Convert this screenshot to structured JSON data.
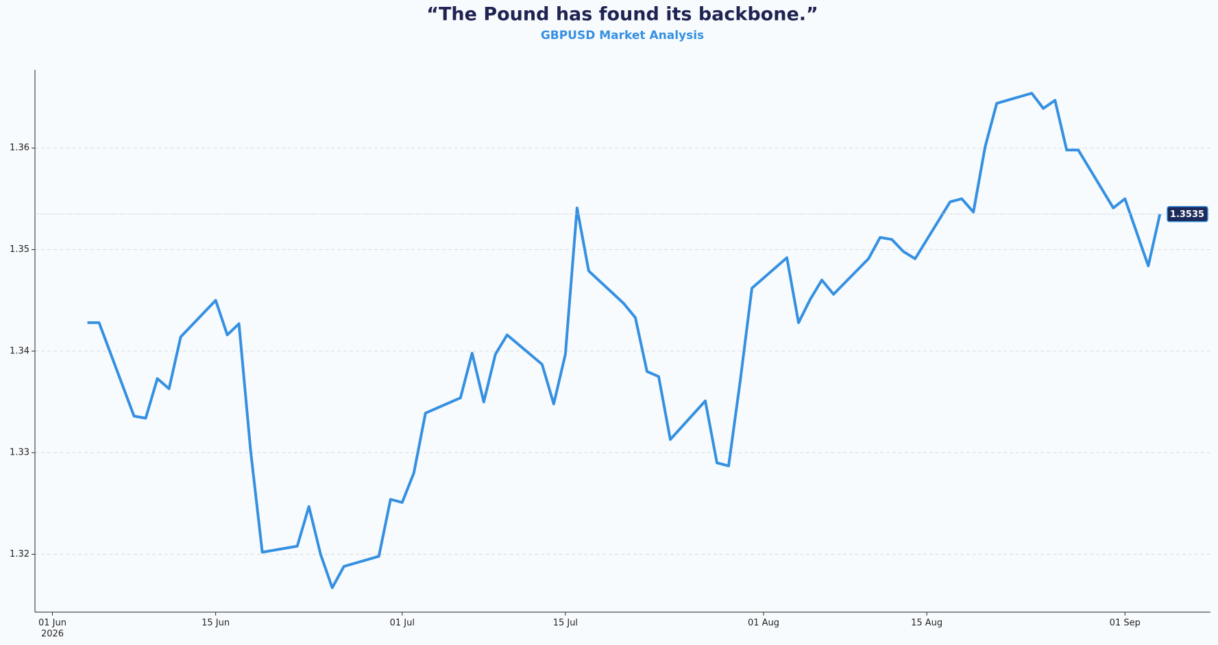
{
  "chart_data": {
    "type": "line",
    "title": "“The Pound has found its backbone.”",
    "subtitle": "GBPUSD Market Analysis",
    "series": [
      {
        "name": "GBPUSD",
        "color": "#3590e2",
        "x": [
          "2026-06-04",
          "2026-06-05",
          "2026-06-08",
          "2026-06-09",
          "2026-06-10",
          "2026-06-11",
          "2026-06-12",
          "2026-06-15",
          "2026-06-16",
          "2026-06-17",
          "2026-06-18",
          "2026-06-19",
          "2026-06-22",
          "2026-06-23",
          "2026-06-24",
          "2026-06-25",
          "2026-06-26",
          "2026-06-29",
          "2026-06-30",
          "2026-07-01",
          "2026-07-02",
          "2026-07-03",
          "2026-07-06",
          "2026-07-07",
          "2026-07-08",
          "2026-07-09",
          "2026-07-10",
          "2026-07-13",
          "2026-07-14",
          "2026-07-15",
          "2026-07-16",
          "2026-07-17",
          "2026-07-20",
          "2026-07-21",
          "2026-07-22",
          "2026-07-23",
          "2026-07-24",
          "2026-07-27",
          "2026-07-28",
          "2026-07-29",
          "2026-07-30",
          "2026-07-31",
          "2026-08-03",
          "2026-08-04",
          "2026-08-05",
          "2026-08-06",
          "2026-08-07",
          "2026-08-10",
          "2026-08-11",
          "2026-08-12",
          "2026-08-13",
          "2026-08-14",
          "2026-08-17",
          "2026-08-18",
          "2026-08-19",
          "2026-08-20",
          "2026-08-21",
          "2026-08-24",
          "2026-08-25",
          "2026-08-26",
          "2026-08-27",
          "2026-08-28",
          "2026-08-31",
          "2026-09-01",
          "2026-09-02",
          "2026-09-03",
          "2026-09-04"
        ],
        "values": [
          1.3428,
          1.3428,
          1.3336,
          1.3334,
          1.3373,
          1.3363,
          1.3414,
          1.345,
          1.3416,
          1.3427,
          1.3302,
          1.3202,
          1.3208,
          1.3247,
          1.32,
          1.3167,
          1.3188,
          1.3198,
          1.3254,
          1.3251,
          1.328,
          1.3339,
          1.3354,
          1.3398,
          1.335,
          1.3397,
          1.3416,
          1.3387,
          1.3348,
          1.3397,
          1.3541,
          1.3479,
          1.3447,
          1.3433,
          1.338,
          1.3375,
          1.3313,
          1.3351,
          1.329,
          1.3287,
          1.3371,
          1.3462,
          1.3492,
          1.3428,
          1.3451,
          1.347,
          1.3456,
          1.3491,
          1.3512,
          1.351,
          1.3498,
          1.3491,
          1.3547,
          1.355,
          1.3537,
          1.3601,
          1.3644,
          1.3654,
          1.3639,
          1.3647,
          1.3598,
          1.3598,
          1.3541,
          1.355,
          1.3517,
          1.3484,
          1.3535
        ]
      }
    ],
    "xlim": [
      "2026-05-30T12:00",
      "2026-09-08T08:00"
    ],
    "xticks": [
      {
        "value": "2026-06-01",
        "label": "01 Jun"
      },
      {
        "value": "2026-06-15",
        "label": "15 Jun"
      },
      {
        "value": "2026-07-01",
        "label": "01 Jul"
      },
      {
        "value": "2026-07-15",
        "label": "15 Jul"
      },
      {
        "value": "2026-08-01",
        "label": "01 Aug"
      },
      {
        "value": "2026-08-15",
        "label": "15 Aug"
      },
      {
        "value": "2026-09-01",
        "label": "01 Sep"
      }
    ],
    "x_year": "2026",
    "ylim": [
      1.3143,
      1.3677
    ],
    "yticks": [
      1.32,
      1.33,
      1.34,
      1.35,
      1.36
    ],
    "grid": true
  }
}
